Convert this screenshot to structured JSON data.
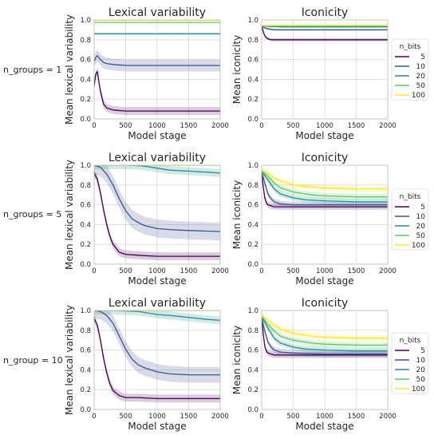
{
  "colors": {
    "5": "#440154",
    "10": "#3b528b",
    "20": "#21918c",
    "50": "#5ec962",
    "100": "#fde725",
    "grid": "#d9d9d9",
    "spine": "#bfbfbf"
  },
  "legend": {
    "title": "n_bits",
    "entries": [
      "5",
      "10",
      "20",
      "50",
      "100"
    ],
    "placement": "right of iconicity panels"
  },
  "row_labels": [
    "n_groups = 1",
    "n_groups = 5",
    "n_group = 10"
  ],
  "chart_data": [
    {
      "type": "line",
      "row": 0,
      "col": 0,
      "title": "Lexical variability",
      "xlabel": "Model stage",
      "ylabel": "Mean lexical variability",
      "xlim": [
        0,
        2000
      ],
      "ylim": [
        0,
        1.0
      ],
      "xticks": [
        0,
        500,
        1000,
        1500,
        2000
      ],
      "yticks": [
        0.0,
        0.2,
        0.4,
        0.6,
        0.8,
        1.0
      ],
      "grid": true,
      "band": true,
      "series": [
        {
          "key": "5",
          "x": [
            0,
            25,
            50,
            75,
            100,
            150,
            200,
            300,
            500,
            1000,
            1500,
            2000
          ],
          "y": [
            0.33,
            0.45,
            0.48,
            0.38,
            0.28,
            0.15,
            0.11,
            0.09,
            0.08,
            0.08,
            0.08,
            0.08
          ],
          "band": 0.04
        },
        {
          "key": "10",
          "x": [
            0,
            25,
            50,
            75,
            100,
            150,
            200,
            300,
            500,
            1000,
            1500,
            2000
          ],
          "y": [
            0.58,
            0.62,
            0.64,
            0.62,
            0.6,
            0.57,
            0.56,
            0.55,
            0.54,
            0.54,
            0.54,
            0.54
          ],
          "band": 0.06
        },
        {
          "key": "20",
          "x": [
            0,
            500,
            1000,
            1500,
            2000
          ],
          "y": [
            0.86,
            0.86,
            0.86,
            0.86,
            0.86
          ],
          "band": 0.01
        },
        {
          "key": "50",
          "x": [
            0,
            500,
            1000,
            1500,
            2000
          ],
          "y": [
            0.975,
            0.975,
            0.975,
            0.975,
            0.975
          ],
          "band": 0.005
        },
        {
          "key": "100",
          "x": [
            0,
            500,
            1000,
            1500,
            2000
          ],
          "y": [
            0.995,
            0.995,
            0.995,
            0.995,
            0.995
          ],
          "band": 0.003
        }
      ]
    },
    {
      "type": "line",
      "row": 0,
      "col": 1,
      "title": "Iconicity",
      "xlabel": "Model stage",
      "ylabel": "Mean iconicity",
      "xlim": [
        0,
        2000
      ],
      "ylim": [
        0,
        1.0
      ],
      "xticks": [
        0,
        500,
        1000,
        1500,
        2000
      ],
      "yticks": [
        0.0,
        0.2,
        0.4,
        0.6,
        0.8,
        1.0
      ],
      "grid": true,
      "band": true,
      "series": [
        {
          "key": "5",
          "x": [
            0,
            25,
            50,
            75,
            100,
            150,
            200,
            300,
            500,
            1000,
            1500,
            2000
          ],
          "y": [
            0.94,
            0.88,
            0.84,
            0.82,
            0.81,
            0.8,
            0.8,
            0.8,
            0.8,
            0.8,
            0.8,
            0.8
          ],
          "band": 0.015
        },
        {
          "key": "10",
          "x": [
            0,
            50,
            100,
            200,
            300,
            500,
            1000,
            1500,
            2000
          ],
          "y": [
            0.94,
            0.92,
            0.91,
            0.9,
            0.9,
            0.9,
            0.9,
            0.9,
            0.9
          ],
          "band": 0.01
        },
        {
          "key": "20",
          "x": [
            0,
            100,
            300,
            500,
            1000,
            1500,
            2000
          ],
          "y": [
            0.94,
            0.935,
            0.93,
            0.93,
            0.93,
            0.93,
            0.93
          ],
          "band": 0.006
        },
        {
          "key": "50",
          "x": [
            0,
            500,
            1000,
            1500,
            2000
          ],
          "y": [
            0.94,
            0.94,
            0.94,
            0.94,
            0.94
          ],
          "band": 0.004
        },
        {
          "key": "100",
          "x": [
            0,
            500,
            1000,
            1500,
            2000
          ],
          "y": [
            0.945,
            0.945,
            0.945,
            0.945,
            0.945
          ],
          "band": 0.003
        }
      ]
    },
    {
      "type": "line",
      "row": 1,
      "col": 0,
      "title": "Lexical variability",
      "xlabel": "Model stage",
      "ylabel": "Mean lexical variability",
      "xlim": [
        0,
        2000
      ],
      "ylim": [
        0,
        1.0
      ],
      "xticks": [
        0,
        500,
        1000,
        1500,
        2000
      ],
      "yticks": [
        0.0,
        0.2,
        0.4,
        0.6,
        0.8,
        1.0
      ],
      "grid": true,
      "band": true,
      "series": [
        {
          "key": "5",
          "x": [
            0,
            50,
            100,
            150,
            200,
            250,
            300,
            400,
            500,
            700,
            1000,
            1500,
            2000
          ],
          "y": [
            0.92,
            0.86,
            0.72,
            0.55,
            0.4,
            0.28,
            0.2,
            0.12,
            0.1,
            0.09,
            0.08,
            0.08,
            0.08
          ],
          "band": 0.04
        },
        {
          "key": "10",
          "x": [
            0,
            100,
            200,
            300,
            400,
            500,
            600,
            700,
            800,
            1000,
            1200,
            1500,
            2000
          ],
          "y": [
            1.0,
            0.98,
            0.91,
            0.8,
            0.66,
            0.54,
            0.46,
            0.42,
            0.39,
            0.36,
            0.35,
            0.34,
            0.33
          ],
          "band": 0.09
        },
        {
          "key": "20",
          "x": [
            0,
            300,
            500,
            700,
            800,
            1000,
            1200,
            1500,
            1800,
            2000
          ],
          "y": [
            1.0,
            1.0,
            1.0,
            0.995,
            0.99,
            0.97,
            0.95,
            0.94,
            0.93,
            0.92
          ],
          "band": 0.04
        },
        {
          "key": "50",
          "x": [
            0,
            500,
            1000,
            1500,
            2000
          ],
          "y": [
            1.0,
            1.0,
            1.0,
            1.0,
            1.0
          ],
          "band": 0.003
        },
        {
          "key": "100",
          "x": [
            0,
            500,
            1000,
            1500,
            2000
          ],
          "y": [
            1.0,
            1.0,
            1.0,
            1.0,
            1.0
          ],
          "band": 0.002
        }
      ]
    },
    {
      "type": "line",
      "row": 1,
      "col": 1,
      "title": "Iconicity",
      "xlabel": "Model stage",
      "ylabel": "Mean iconicity",
      "xlim": [
        0,
        2000
      ],
      "ylim": [
        0,
        1.0
      ],
      "xticks": [
        0,
        500,
        1000,
        1500,
        2000
      ],
      "yticks": [
        0.0,
        0.2,
        0.4,
        0.6,
        0.8,
        1.0
      ],
      "grid": true,
      "band": true,
      "series": [
        {
          "key": "5",
          "x": [
            0,
            25,
            50,
            75,
            100,
            150,
            200,
            300,
            500,
            1000,
            1500,
            2000
          ],
          "y": [
            0.93,
            0.78,
            0.67,
            0.62,
            0.6,
            0.59,
            0.58,
            0.58,
            0.58,
            0.58,
            0.58,
            0.58
          ],
          "band": 0.03
        },
        {
          "key": "10",
          "x": [
            0,
            50,
            100,
            150,
            200,
            300,
            500,
            1000,
            1500,
            2000
          ],
          "y": [
            0.93,
            0.82,
            0.71,
            0.66,
            0.63,
            0.61,
            0.6,
            0.6,
            0.6,
            0.6
          ],
          "band": 0.03
        },
        {
          "key": "20",
          "x": [
            0,
            100,
            200,
            300,
            500,
            700,
            1000,
            1500,
            2000
          ],
          "y": [
            0.94,
            0.85,
            0.76,
            0.71,
            0.67,
            0.65,
            0.64,
            0.63,
            0.63
          ],
          "band": 0.03
        },
        {
          "key": "50",
          "x": [
            0,
            100,
            200,
            300,
            500,
            800,
            1000,
            1500,
            2000
          ],
          "y": [
            0.94,
            0.89,
            0.82,
            0.77,
            0.73,
            0.7,
            0.69,
            0.68,
            0.68
          ],
          "band": 0.03
        },
        {
          "key": "100",
          "x": [
            0,
            100,
            200,
            300,
            500,
            800,
            1000,
            1500,
            2000
          ],
          "y": [
            0.95,
            0.92,
            0.87,
            0.84,
            0.8,
            0.78,
            0.77,
            0.76,
            0.76
          ],
          "band": 0.03
        }
      ]
    },
    {
      "type": "line",
      "row": 2,
      "col": 0,
      "title": "Lexical variability",
      "xlabel": "Model stage",
      "ylabel": "Mean lexical variability",
      "xlim": [
        0,
        2000
      ],
      "ylim": [
        0,
        1.0
      ],
      "xticks": [
        0,
        500,
        1000,
        1500,
        2000
      ],
      "yticks": [
        0.0,
        0.2,
        0.4,
        0.6,
        0.8,
        1.0
      ],
      "grid": true,
      "band": true,
      "series": [
        {
          "key": "5",
          "x": [
            0,
            50,
            100,
            150,
            200,
            250,
            300,
            400,
            500,
            700,
            1000,
            1500,
            2000
          ],
          "y": [
            0.92,
            0.85,
            0.7,
            0.52,
            0.37,
            0.26,
            0.19,
            0.14,
            0.12,
            0.12,
            0.11,
            0.11,
            0.11
          ],
          "band": 0.04
        },
        {
          "key": "10",
          "x": [
            0,
            100,
            200,
            300,
            400,
            500,
            600,
            700,
            800,
            1000,
            1200,
            1500,
            2000
          ],
          "y": [
            1.0,
            0.99,
            0.95,
            0.87,
            0.74,
            0.61,
            0.51,
            0.45,
            0.42,
            0.38,
            0.36,
            0.35,
            0.35
          ],
          "band": 0.08
        },
        {
          "key": "20",
          "x": [
            0,
            300,
            500,
            700,
            800,
            1000,
            1200,
            1500,
            1800,
            2000
          ],
          "y": [
            1.0,
            1.0,
            0.995,
            0.99,
            0.98,
            0.96,
            0.95,
            0.93,
            0.91,
            0.9
          ],
          "band": 0.04
        },
        {
          "key": "50",
          "x": [
            0,
            500,
            1000,
            1500,
            2000
          ],
          "y": [
            1.0,
            1.0,
            1.0,
            1.0,
            1.0
          ],
          "band": 0.003
        },
        {
          "key": "100",
          "x": [
            0,
            500,
            1000,
            1500,
            2000
          ],
          "y": [
            1.0,
            1.0,
            1.0,
            1.0,
            1.0
          ],
          "band": 0.002
        }
      ]
    },
    {
      "type": "line",
      "row": 2,
      "col": 1,
      "title": "Iconicity",
      "xlabel": "Model stage",
      "ylabel": "Mean iconicity",
      "xlim": [
        0,
        2000
      ],
      "ylim": [
        0,
        1.0
      ],
      "xticks": [
        0,
        500,
        1000,
        1500,
        2000
      ],
      "yticks": [
        0.0,
        0.2,
        0.4,
        0.6,
        0.8,
        1.0
      ],
      "grid": true,
      "band": true,
      "series": [
        {
          "key": "5",
          "x": [
            0,
            25,
            50,
            75,
            100,
            150,
            200,
            300,
            500,
            1000,
            1500,
            2000
          ],
          "y": [
            0.93,
            0.76,
            0.64,
            0.59,
            0.57,
            0.56,
            0.55,
            0.55,
            0.55,
            0.55,
            0.55,
            0.55
          ],
          "band": 0.03
        },
        {
          "key": "10",
          "x": [
            0,
            50,
            100,
            150,
            200,
            300,
            500,
            1000,
            1500,
            2000
          ],
          "y": [
            0.93,
            0.79,
            0.68,
            0.63,
            0.6,
            0.58,
            0.57,
            0.56,
            0.56,
            0.56
          ],
          "band": 0.03
        },
        {
          "key": "20",
          "x": [
            0,
            100,
            200,
            300,
            500,
            700,
            1000,
            1500,
            2000
          ],
          "y": [
            0.94,
            0.82,
            0.72,
            0.67,
            0.63,
            0.61,
            0.6,
            0.59,
            0.59
          ],
          "band": 0.03
        },
        {
          "key": "50",
          "x": [
            0,
            100,
            200,
            300,
            500,
            800,
            1000,
            1500,
            2000
          ],
          "y": [
            0.94,
            0.86,
            0.79,
            0.74,
            0.7,
            0.67,
            0.66,
            0.65,
            0.65
          ],
          "band": 0.03
        },
        {
          "key": "100",
          "x": [
            0,
            100,
            200,
            300,
            500,
            800,
            1000,
            1500,
            2000
          ],
          "y": [
            0.95,
            0.9,
            0.85,
            0.81,
            0.77,
            0.74,
            0.73,
            0.72,
            0.72
          ],
          "band": 0.03
        }
      ]
    }
  ]
}
